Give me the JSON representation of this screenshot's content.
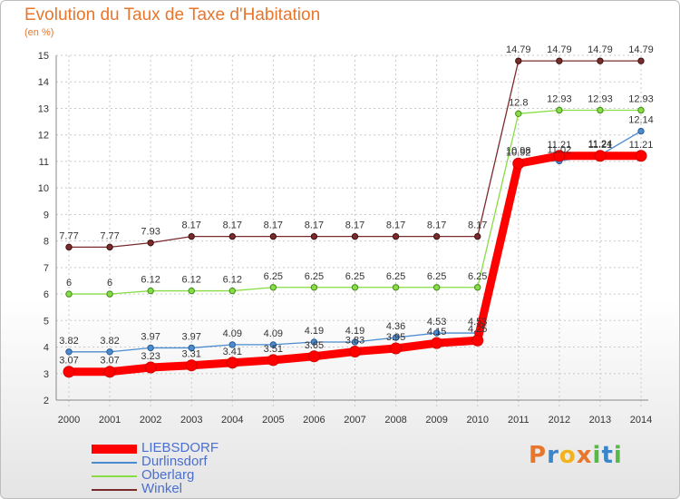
{
  "chart_data": {
    "type": "line",
    "title": "Evolution du Taux de Taxe d'Habitation",
    "subtitle": "(en %)",
    "xlabel": "",
    "ylabel": "(en %)",
    "ylim": [
      2,
      15
    ],
    "yticks": [
      "2",
      "3",
      "4",
      "5",
      "6",
      "7",
      "8",
      "9",
      "10",
      "11",
      "12",
      "13",
      "14",
      "15"
    ],
    "categories": [
      "2000",
      "2001",
      "2002",
      "2003",
      "2004",
      "2005",
      "2006",
      "2007",
      "2008",
      "2009",
      "2010",
      "2011",
      "2012",
      "2013",
      "2014"
    ],
    "series": [
      {
        "name": "LIEBSDORF",
        "color": "#ff0000",
        "values": [
          3.07,
          3.07,
          3.23,
          3.31,
          3.41,
          3.51,
          3.65,
          3.83,
          3.95,
          4.15,
          4.25,
          10.92,
          11.21,
          11.21,
          11.21
        ],
        "labels": [
          "3.07",
          "3.07",
          "3.23",
          "3.31",
          "3.41",
          "3.51",
          "3.65",
          "3.83",
          "3.95",
          "4.15",
          "4.25",
          "10.92",
          "11.21",
          "11.21",
          "11.21"
        ]
      },
      {
        "name": "Durlinsdorf",
        "color": "#4b8bd0",
        "values": [
          3.82,
          3.82,
          3.97,
          3.97,
          4.09,
          4.09,
          4.19,
          4.19,
          4.36,
          4.53,
          4.53,
          10.98,
          11.02,
          11.24,
          12.14
        ],
        "labels": [
          "3.82",
          "3.82",
          "3.97",
          "3.97",
          "4.09",
          "4.09",
          "4.19",
          "4.19",
          "4.36",
          "4.53",
          "4.53",
          "10.98",
          "11.02",
          "11.24",
          "12.14"
        ]
      },
      {
        "name": "Oberlarg",
        "color": "#88dd44",
        "values": [
          6,
          6,
          6.12,
          6.12,
          6.12,
          6.25,
          6.25,
          6.25,
          6.25,
          6.25,
          6.25,
          12.8,
          12.93,
          12.93,
          12.93
        ],
        "labels": [
          "6",
          "6",
          "6.12",
          "6.12",
          "6.12",
          "6.25",
          "6.25",
          "6.25",
          "6.25",
          "6.25",
          "6.25",
          "12.8",
          "12.93",
          "12.93",
          "12.93"
        ]
      },
      {
        "name": "Winkel",
        "color": "#7a2b2b",
        "values": [
          7.77,
          7.77,
          7.93,
          8.17,
          8.17,
          8.17,
          8.17,
          8.17,
          8.17,
          8.17,
          8.17,
          14.79,
          14.79,
          14.79,
          14.79
        ],
        "labels": [
          "7.77",
          "7.77",
          "7.93",
          "8.17",
          "8.17",
          "8.17",
          "8.17",
          "8.17",
          "8.17",
          "8.17",
          "8.17",
          "14.79",
          "14.79",
          "14.79",
          "14.79"
        ]
      }
    ],
    "legend": {
      "position": "bottom-left",
      "entries": [
        "LIEBSDORF",
        "Durlinsdorf",
        "Oberlarg",
        "Winkel"
      ]
    }
  },
  "brand": {
    "name": "Proxiti",
    "letters": [
      "P",
      "r",
      "o",
      "x",
      "i",
      "t",
      "i"
    ],
    "colors": [
      "#e8762c",
      "#3a86c8",
      "#f2b21b",
      "#e8762c",
      "#58b848",
      "#3a86c8",
      "#58b848"
    ]
  }
}
